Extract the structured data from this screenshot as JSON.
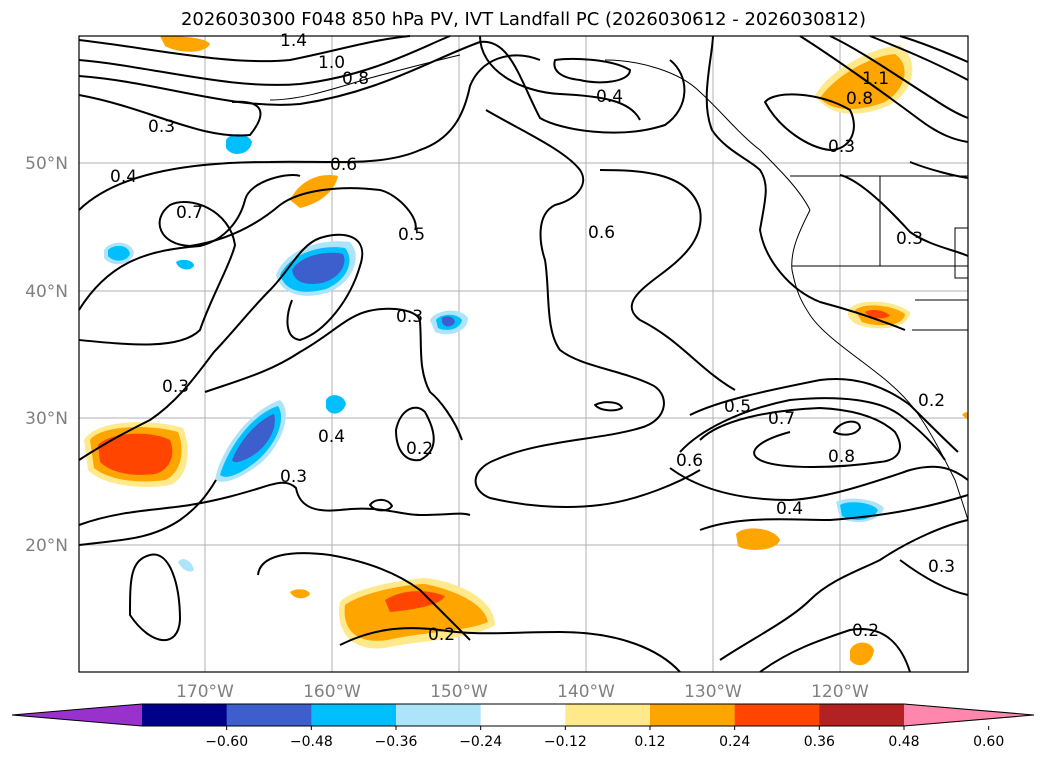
{
  "title": "2026030300 F048 850 hPa PV, IVT Landfall PC (2026030612 - 2026030812)",
  "lat_labels": [
    "50°N",
    "40°N",
    "30°N",
    "20°N"
  ],
  "lon_labels": [
    "170°W",
    "160°W",
    "150°W",
    "140°W",
    "130°W",
    "120°W"
  ],
  "contour_labels": [
    "1.4",
    "1.0",
    "0.8",
    "0.3",
    "0.4",
    "0.7",
    "0.6",
    "0.5",
    "0.6",
    "0.4",
    "0.3",
    "0.3",
    "0.3",
    "0.4",
    "0.2",
    "0.3",
    "0.5",
    "0.7",
    "0.6",
    "0.8",
    "0.4",
    "0.2",
    "0.2",
    "0.3",
    "0.3",
    "0.2",
    "0.8",
    "1.1"
  ],
  "colorbar": {
    "ticks": [
      "−0.60",
      "−0.48",
      "−0.36",
      "−0.24",
      "−0.12",
      "0.12",
      "0.24",
      "0.36",
      "0.48",
      "0.60"
    ],
    "colors": [
      "#9932cc",
      "#00008b",
      "#3c5fcd",
      "#00bfff",
      "#aee4fa",
      "#ffffff",
      "#ffe98a",
      "#ffa500",
      "#ff4500",
      "#b22222",
      "#ff86ad"
    ]
  }
}
